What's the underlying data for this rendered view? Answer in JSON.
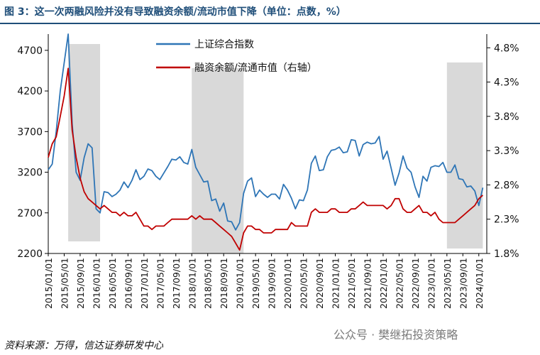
{
  "header": {
    "title": "图 3：这一次两融风险并没有导致融资余额/流动市值下降（单位：点数，%）"
  },
  "footer": {
    "source": "资料来源：万得，信达证券研发中心",
    "watermark": "公众号 · 樊继拓投资策略"
  },
  "colors": {
    "index": "#2e75b6",
    "margin": "#c00000",
    "shade": "#d9d9d9"
  },
  "chart_data": {
    "type": "line",
    "title": "",
    "x_tick_labels": [
      "2015/01/01",
      "2015/05/01",
      "2015/09/01",
      "2016/01/01",
      "2016/05/01",
      "2016/09/01",
      "2017/01/01",
      "2017/05/01",
      "2017/09/01",
      "2018/01/01",
      "2018/05/01",
      "2018/09/01",
      "2019/01/01",
      "2019/05/01",
      "2019/09/01",
      "2020/01/01",
      "2020/05/01",
      "2020/09/01",
      "2021/01/01",
      "2021/05/01",
      "2021/09/01",
      "2022/01/01",
      "2022/05/01",
      "2022/09/01",
      "2023/01/01",
      "2023/05/01",
      "2023/09/01",
      "2024/01/01"
    ],
    "y_left": {
      "min": 2200,
      "max": 4900,
      "ticks": [
        "2200",
        "2700",
        "3200",
        "3700",
        "4200",
        "4700"
      ]
    },
    "y_right": {
      "min": 1.8,
      "max": 5.0,
      "ticks": [
        "1.8%",
        "2.3%",
        "2.8%",
        "3.3%",
        "3.8%",
        "4.3%",
        "4.8%"
      ]
    },
    "shaded_periods": [
      {
        "start": "2015-06",
        "end": "2016-02"
      },
      {
        "start": "2018-01",
        "end": "2019-02"
      },
      {
        "start": "2023-05",
        "end": "2024-02"
      }
    ],
    "legend_position": "top-center",
    "series": [
      {
        "name": "上证综合指数",
        "axis": "left",
        "color": "#2e75b6",
        "points": [
          [
            "2015-01",
            3230
          ],
          [
            "2015-02",
            3300
          ],
          [
            "2015-03",
            3700
          ],
          [
            "2015-04",
            4200
          ],
          [
            "2015-05",
            4550
          ],
          [
            "2015-06",
            4900
          ],
          [
            "2015-07",
            3800
          ],
          [
            "2015-08",
            3200
          ],
          [
            "2015-09",
            3100
          ],
          [
            "2015-10",
            3380
          ],
          [
            "2015-11",
            3550
          ],
          [
            "2015-12",
            3500
          ],
          [
            "2016-01",
            2750
          ],
          [
            "2016-02",
            2700
          ],
          [
            "2016-03",
            2960
          ],
          [
            "2016-04",
            2950
          ],
          [
            "2016-05",
            2900
          ],
          [
            "2016-06",
            2930
          ],
          [
            "2016-07",
            2980
          ],
          [
            "2016-08",
            3080
          ],
          [
            "2016-09",
            3010
          ],
          [
            "2016-10",
            3100
          ],
          [
            "2016-11",
            3230
          ],
          [
            "2016-12",
            3110
          ],
          [
            "2017-01",
            3150
          ],
          [
            "2017-02",
            3240
          ],
          [
            "2017-03",
            3220
          ],
          [
            "2017-04",
            3150
          ],
          [
            "2017-05",
            3110
          ],
          [
            "2017-06",
            3190
          ],
          [
            "2017-07",
            3270
          ],
          [
            "2017-08",
            3360
          ],
          [
            "2017-09",
            3350
          ],
          [
            "2017-10",
            3390
          ],
          [
            "2017-11",
            3320
          ],
          [
            "2017-12",
            3300
          ],
          [
            "2018-01",
            3480
          ],
          [
            "2018-02",
            3260
          ],
          [
            "2018-03",
            3170
          ],
          [
            "2018-04",
            3080
          ],
          [
            "2018-05",
            3090
          ],
          [
            "2018-06",
            2850
          ],
          [
            "2018-07",
            2870
          ],
          [
            "2018-08",
            2720
          ],
          [
            "2018-09",
            2820
          ],
          [
            "2018-10",
            2600
          ],
          [
            "2018-11",
            2590
          ],
          [
            "2018-12",
            2490
          ],
          [
            "2019-01",
            2580
          ],
          [
            "2019-02",
            2940
          ],
          [
            "2019-03",
            3090
          ],
          [
            "2019-04",
            3130
          ],
          [
            "2019-05",
            2900
          ],
          [
            "2019-06",
            2980
          ],
          [
            "2019-07",
            2930
          ],
          [
            "2019-08",
            2890
          ],
          [
            "2019-09",
            2930
          ],
          [
            "2019-10",
            2930
          ],
          [
            "2019-11",
            2870
          ],
          [
            "2019-12",
            3050
          ],
          [
            "2020-01",
            2980
          ],
          [
            "2020-02",
            2880
          ],
          [
            "2020-03",
            2750
          ],
          [
            "2020-04",
            2860
          ],
          [
            "2020-05",
            2850
          ],
          [
            "2020-06",
            2980
          ],
          [
            "2020-07",
            3310
          ],
          [
            "2020-08",
            3400
          ],
          [
            "2020-09",
            3220
          ],
          [
            "2020-10",
            3230
          ],
          [
            "2020-11",
            3390
          ],
          [
            "2020-12",
            3470
          ],
          [
            "2021-01",
            3480
          ],
          [
            "2021-02",
            3510
          ],
          [
            "2021-03",
            3440
          ],
          [
            "2021-04",
            3450
          ],
          [
            "2021-05",
            3600
          ],
          [
            "2021-06",
            3590
          ],
          [
            "2021-07",
            3400
          ],
          [
            "2021-08",
            3540
          ],
          [
            "2021-09",
            3570
          ],
          [
            "2021-10",
            3550
          ],
          [
            "2021-11",
            3560
          ],
          [
            "2021-12",
            3640
          ],
          [
            "2022-01",
            3360
          ],
          [
            "2022-02",
            3460
          ],
          [
            "2022-03",
            3250
          ],
          [
            "2022-04",
            3040
          ],
          [
            "2022-05",
            3190
          ],
          [
            "2022-06",
            3400
          ],
          [
            "2022-07",
            3250
          ],
          [
            "2022-08",
            3200
          ],
          [
            "2022-09",
            3020
          ],
          [
            "2022-10",
            2890
          ],
          [
            "2022-11",
            3150
          ],
          [
            "2022-12",
            3090
          ],
          [
            "2023-01",
            3260
          ],
          [
            "2023-02",
            3280
          ],
          [
            "2023-03",
            3270
          ],
          [
            "2023-04",
            3320
          ],
          [
            "2023-05",
            3200
          ],
          [
            "2023-06",
            3200
          ],
          [
            "2023-07",
            3290
          ],
          [
            "2023-08",
            3120
          ],
          [
            "2023-09",
            3110
          ],
          [
            "2023-10",
            3020
          ],
          [
            "2023-11",
            3030
          ],
          [
            "2023-12",
            2970
          ],
          [
            "2024-01",
            2790
          ],
          [
            "2024-02",
            3010
          ]
        ]
      },
      {
        "name": "融资余额/流通市值（右轴）",
        "axis": "right",
        "color": "#c00000",
        "points": [
          [
            "2015-01",
            3.2
          ],
          [
            "2015-02",
            3.4
          ],
          [
            "2015-03",
            3.5
          ],
          [
            "2015-04",
            3.8
          ],
          [
            "2015-05",
            4.1
          ],
          [
            "2015-06",
            4.5
          ],
          [
            "2015-07",
            3.6
          ],
          [
            "2015-08",
            3.2
          ],
          [
            "2015-09",
            2.9
          ],
          [
            "2015-10",
            2.7
          ],
          [
            "2015-11",
            2.6
          ],
          [
            "2015-12",
            2.55
          ],
          [
            "2016-01",
            2.5
          ],
          [
            "2016-02",
            2.45
          ],
          [
            "2016-03",
            2.5
          ],
          [
            "2016-04",
            2.45
          ],
          [
            "2016-05",
            2.4
          ],
          [
            "2016-06",
            2.4
          ],
          [
            "2016-07",
            2.35
          ],
          [
            "2016-08",
            2.4
          ],
          [
            "2016-09",
            2.35
          ],
          [
            "2016-10",
            2.35
          ],
          [
            "2016-11",
            2.4
          ],
          [
            "2016-12",
            2.3
          ],
          [
            "2017-01",
            2.2
          ],
          [
            "2017-02",
            2.2
          ],
          [
            "2017-03",
            2.15
          ],
          [
            "2017-04",
            2.2
          ],
          [
            "2017-05",
            2.2
          ],
          [
            "2017-06",
            2.2
          ],
          [
            "2017-07",
            2.25
          ],
          [
            "2017-08",
            2.3
          ],
          [
            "2017-09",
            2.3
          ],
          [
            "2017-10",
            2.3
          ],
          [
            "2017-11",
            2.3
          ],
          [
            "2017-12",
            2.3
          ],
          [
            "2018-01",
            2.35
          ],
          [
            "2018-02",
            2.3
          ],
          [
            "2018-03",
            2.35
          ],
          [
            "2018-04",
            2.3
          ],
          [
            "2018-05",
            2.3
          ],
          [
            "2018-06",
            2.3
          ],
          [
            "2018-07",
            2.25
          ],
          [
            "2018-08",
            2.2
          ],
          [
            "2018-09",
            2.15
          ],
          [
            "2018-10",
            2.1
          ],
          [
            "2018-11",
            2.05
          ],
          [
            "2018-12",
            1.95
          ],
          [
            "2019-01",
            1.85
          ],
          [
            "2019-02",
            2.1
          ],
          [
            "2019-03",
            2.2
          ],
          [
            "2019-04",
            2.2
          ],
          [
            "2019-05",
            2.15
          ],
          [
            "2019-06",
            2.15
          ],
          [
            "2019-07",
            2.1
          ],
          [
            "2019-08",
            2.1
          ],
          [
            "2019-09",
            2.1
          ],
          [
            "2019-10",
            2.15
          ],
          [
            "2019-11",
            2.15
          ],
          [
            "2019-12",
            2.15
          ],
          [
            "2020-01",
            2.15
          ],
          [
            "2020-02",
            2.25
          ],
          [
            "2020-03",
            2.2
          ],
          [
            "2020-04",
            2.2
          ],
          [
            "2020-05",
            2.2
          ],
          [
            "2020-06",
            2.2
          ],
          [
            "2020-07",
            2.4
          ],
          [
            "2020-08",
            2.45
          ],
          [
            "2020-09",
            2.4
          ],
          [
            "2020-10",
            2.4
          ],
          [
            "2020-11",
            2.4
          ],
          [
            "2020-12",
            2.45
          ],
          [
            "2021-01",
            2.45
          ],
          [
            "2021-02",
            2.4
          ],
          [
            "2021-03",
            2.4
          ],
          [
            "2021-04",
            2.4
          ],
          [
            "2021-05",
            2.45
          ],
          [
            "2021-06",
            2.45
          ],
          [
            "2021-07",
            2.5
          ],
          [
            "2021-08",
            2.55
          ],
          [
            "2021-09",
            2.5
          ],
          [
            "2021-10",
            2.5
          ],
          [
            "2021-11",
            2.5
          ],
          [
            "2021-12",
            2.5
          ],
          [
            "2022-01",
            2.5
          ],
          [
            "2022-02",
            2.45
          ],
          [
            "2022-03",
            2.5
          ],
          [
            "2022-04",
            2.6
          ],
          [
            "2022-05",
            2.6
          ],
          [
            "2022-06",
            2.45
          ],
          [
            "2022-07",
            2.4
          ],
          [
            "2022-08",
            2.4
          ],
          [
            "2022-09",
            2.45
          ],
          [
            "2022-10",
            2.5
          ],
          [
            "2022-11",
            2.4
          ],
          [
            "2022-12",
            2.4
          ],
          [
            "2023-01",
            2.35
          ],
          [
            "2023-02",
            2.4
          ],
          [
            "2023-03",
            2.3
          ],
          [
            "2023-04",
            2.25
          ],
          [
            "2023-05",
            2.25
          ],
          [
            "2023-06",
            2.25
          ],
          [
            "2023-07",
            2.25
          ],
          [
            "2023-08",
            2.3
          ],
          [
            "2023-09",
            2.35
          ],
          [
            "2023-10",
            2.4
          ],
          [
            "2023-11",
            2.45
          ],
          [
            "2023-12",
            2.5
          ],
          [
            "2024-01",
            2.6
          ],
          [
            "2024-02",
            2.65
          ]
        ]
      }
    ]
  }
}
